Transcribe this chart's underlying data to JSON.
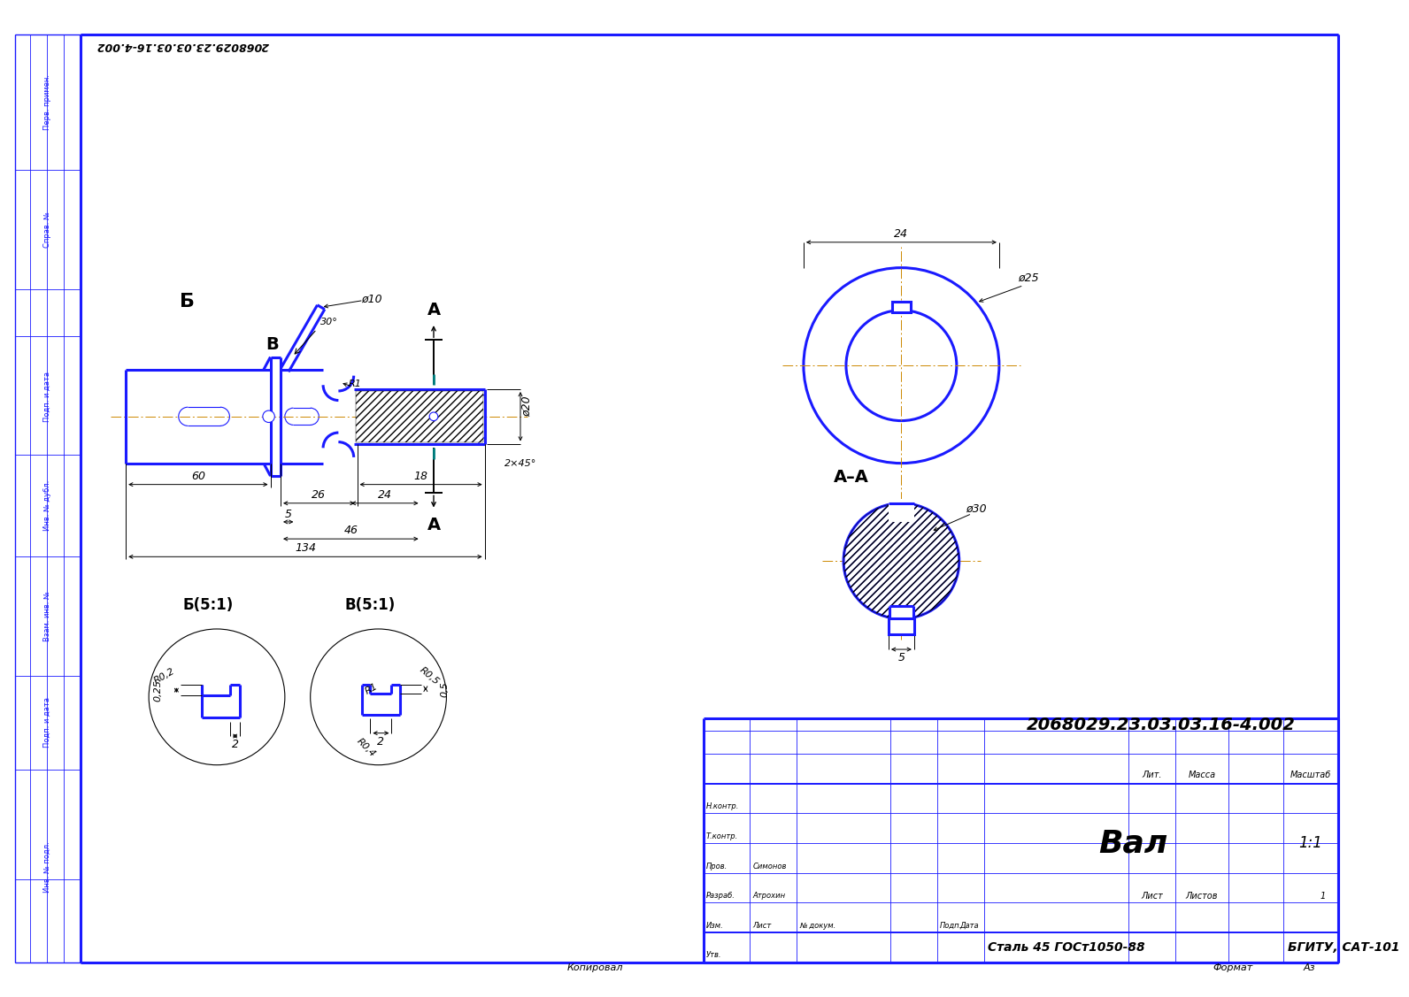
{
  "bg_color": "#ffffff",
  "line_color": "#1a1aff",
  "dim_color": "#000000",
  "cl_color": "#cc8800",
  "teal_color": "#008080",
  "title_num": "2068029.23.03.03.16-4.002",
  "part_name": "Вал",
  "material": "Сталь 45 ГОСт1050-88",
  "org": "БГИТУ, САТ-101",
  "scale": "1:1",
  "developer_label": "Разраб.",
  "developer": "Атрохин",
  "checker_label": "Пров.",
  "checker": "Симонов",
  "tcontrol_label": "Т.контр.",
  "ncontrol_label": "Н.контр.",
  "utv_label": "Утв.",
  "izm_label": "Изм.",
  "list_label": "Лист",
  "num_doc_label": "№ докум.",
  "podp_label": "Подп.",
  "data_label": "Дата",
  "lit_label": "Лит.",
  "massa_label": "Масса",
  "scale_label": "Масштаб",
  "list_val_label": "Лист",
  "listov_label": "Листов",
  "copy_label": "Копировал",
  "format_label": "Формат",
  "format_val": "Аз",
  "label_A": "А",
  "label_B": "Б",
  "label_V": "В",
  "label_AA": "А–А",
  "label_B51": "Б(5:1)",
  "label_V51": "В(5:1)",
  "strip_labels": [
    "Перв. примен.",
    "Справ. №",
    "Подп. и дата",
    "Инв. № дубл.",
    "Взам. инв. №",
    "Подп. и дата",
    "Инв. № подл."
  ]
}
